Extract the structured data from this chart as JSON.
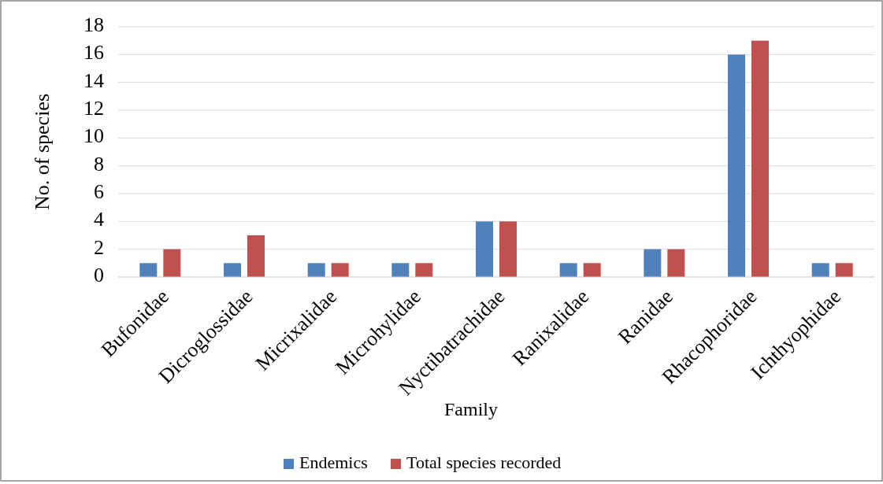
{
  "chart_data": {
    "type": "bar",
    "xlabel": "Family",
    "ylabel": "No. of species",
    "categories": [
      "Bufonidae",
      "Dicroglossidae",
      "Micrixalidae",
      "Microhylidae",
      "Nyctibatrachidae",
      "Ranixalidae",
      "Ranidae",
      "Rhacophoridae",
      "Ichthyophidae"
    ],
    "series": [
      {
        "name": "Endemics",
        "color": "#4f81bd",
        "values": [
          1,
          1,
          1,
          1,
          4,
          1,
          2,
          16,
          1
        ]
      },
      {
        "name": "Total species recorded",
        "color": "#c0504d",
        "values": [
          2,
          3,
          1,
          1,
          4,
          1,
          2,
          17,
          1
        ]
      }
    ],
    "ylim": [
      0,
      18
    ],
    "yticks": [
      0,
      2,
      4,
      6,
      8,
      10,
      12,
      14,
      16,
      18
    ],
    "grid": "y",
    "legend": "bottom"
  }
}
